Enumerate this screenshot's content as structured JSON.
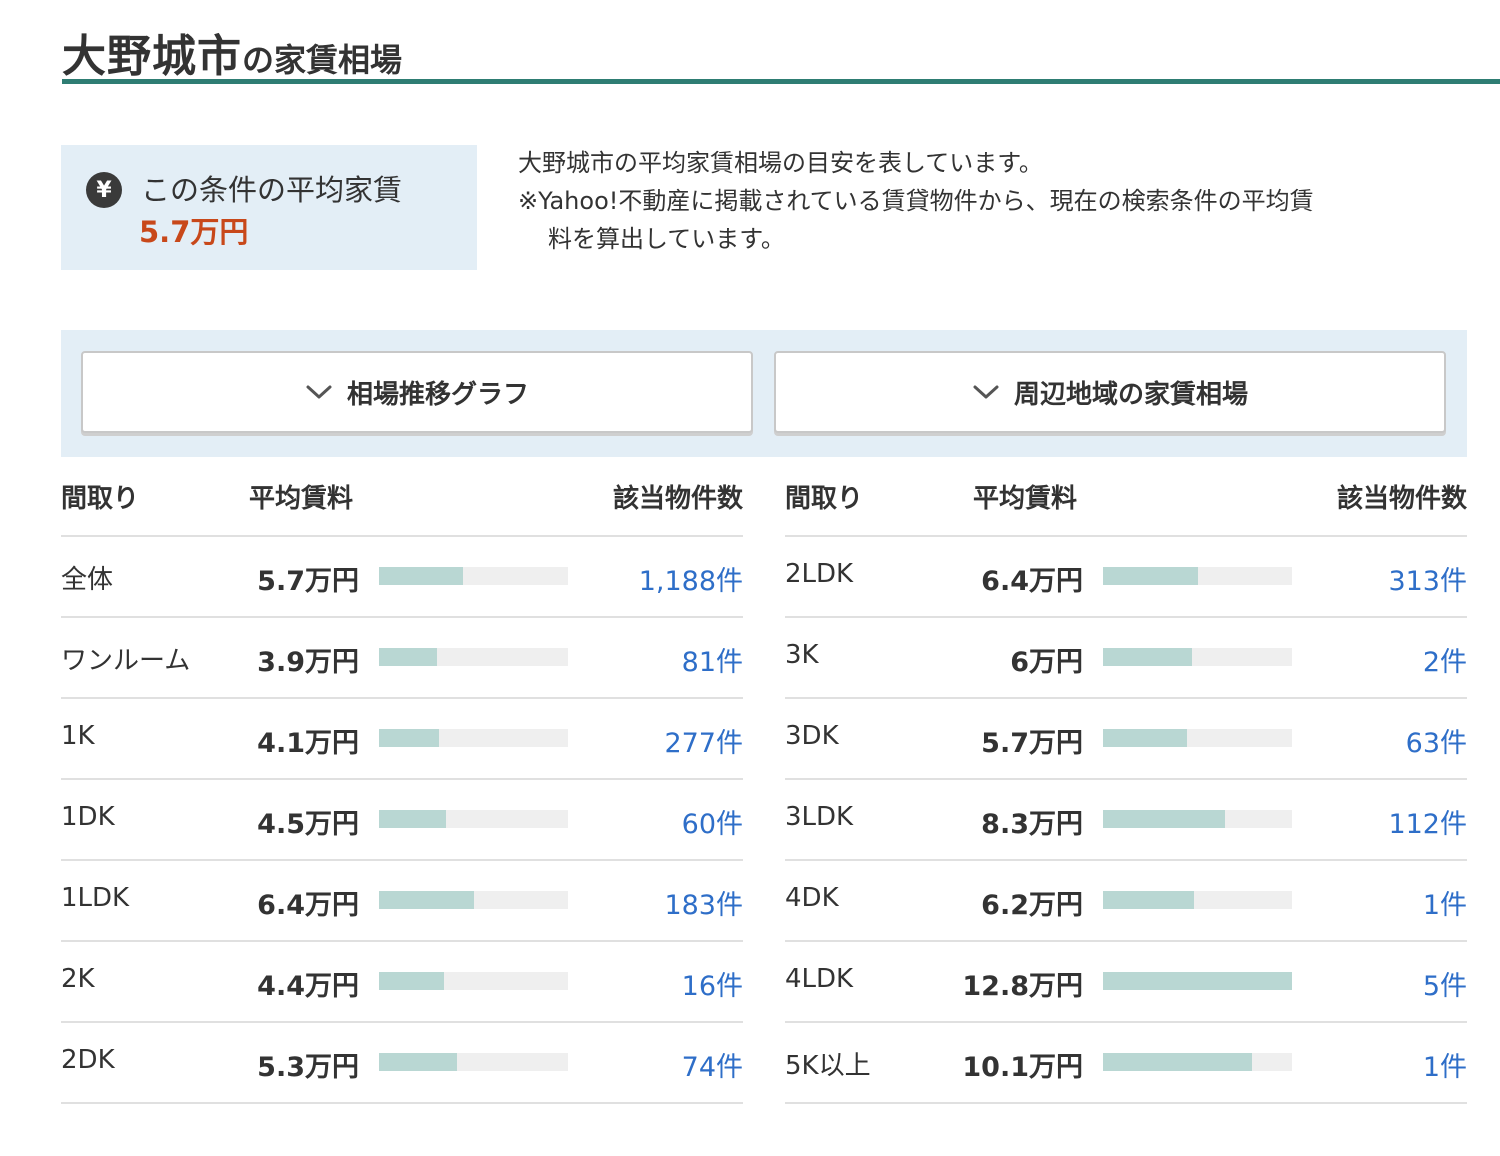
{
  "header": {
    "city": "大野城市",
    "suffix": "の家賃相場"
  },
  "average": {
    "label": "この条件の平均家賃",
    "value": "5.7万円",
    "icon": "yen-icon",
    "value_color": "#c8481a"
  },
  "description": {
    "line1": "大野城市の平均家賃相場の目安を表しています。",
    "line2": "※Yahoo!不動産に掲載されている賃貸物件から、現在の検索条件の平均賃",
    "line3": "料を算出しています。"
  },
  "toggles": [
    {
      "label": "相場推移グラフ",
      "icon": "chevron-down-icon"
    },
    {
      "label": "周辺地域の家賃相場",
      "icon": "chevron-down-icon"
    }
  ],
  "table_headers": {
    "layout": "間取り",
    "price": "平均賃料",
    "count": "該当物件数"
  },
  "tables": [
    [
      {
        "layout": "全体",
        "price": "5.7万円",
        "ratio": 0.445,
        "count": "1,188件"
      },
      {
        "layout": "ワンルーム",
        "price": "3.9万円",
        "ratio": 0.305,
        "count": "81件"
      },
      {
        "layout": "1K",
        "price": "4.1万円",
        "ratio": 0.32,
        "count": "277件"
      },
      {
        "layout": "1DK",
        "price": "4.5万円",
        "ratio": 0.352,
        "count": "60件"
      },
      {
        "layout": "1LDK",
        "price": "6.4万円",
        "ratio": 0.5,
        "count": "183件"
      },
      {
        "layout": "2K",
        "price": "4.4万円",
        "ratio": 0.344,
        "count": "16件"
      },
      {
        "layout": "2DK",
        "price": "5.3万円",
        "ratio": 0.414,
        "count": "74件"
      }
    ],
    [
      {
        "layout": "2LDK",
        "price": "6.4万円",
        "ratio": 0.5,
        "count": "313件"
      },
      {
        "layout": "3K",
        "price": "6万円",
        "ratio": 0.469,
        "count": "2件"
      },
      {
        "layout": "3DK",
        "price": "5.7万円",
        "ratio": 0.445,
        "count": "63件"
      },
      {
        "layout": "3LDK",
        "price": "8.3万円",
        "ratio": 0.648,
        "count": "112件"
      },
      {
        "layout": "4DK",
        "price": "6.2万円",
        "ratio": 0.484,
        "count": "1件"
      },
      {
        "layout": "4LDK",
        "price": "12.8万円",
        "ratio": 1.0,
        "count": "5件"
      },
      {
        "layout": "5K以上",
        "price": "10.1万円",
        "ratio": 0.789,
        "count": "1件"
      }
    ]
  ],
  "colors": {
    "accent_rule": "#2e7d73",
    "bar_fill": "#b9d7d3",
    "bar_track": "#efefef",
    "link": "#2e6ec8",
    "panel_bg": "#e3eef6"
  }
}
